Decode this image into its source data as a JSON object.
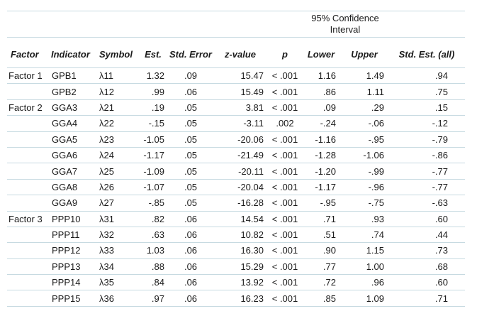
{
  "colors": {
    "rule": "#c7dae1",
    "text": "#1b1b1b"
  },
  "table": {
    "confidence_header": "95% Confidence Interval",
    "columns": [
      "Factor",
      "Indicator",
      "Symbol",
      "Est.",
      "Std. Error",
      "z-value",
      "p",
      "Lower",
      "Upper",
      "Std. Est. (all)"
    ],
    "rows": [
      {
        "factor": "Factor 1",
        "indicator": "GPB1",
        "symbol": "λ11",
        "est": "1.32",
        "std_error": ".09",
        "z_value": "15.47",
        "p": "< .001",
        "lower": "1.16",
        "upper": "1.49",
        "std_est_all": ".94"
      },
      {
        "factor": "",
        "indicator": "GPB2",
        "symbol": "λ12",
        "est": ".99",
        "std_error": ".06",
        "z_value": "15.49",
        "p": "< .001",
        "lower": ".86",
        "upper": "1.11",
        "std_est_all": ".75"
      },
      {
        "factor": "Factor 2",
        "indicator": "GGA3",
        "symbol": "λ21",
        "est": ".19",
        "std_error": ".05",
        "z_value": "3.81",
        "p": "< .001",
        "lower": ".09",
        "upper": ".29",
        "std_est_all": ".15"
      },
      {
        "factor": "",
        "indicator": "GGA4",
        "symbol": "λ22",
        "est": "-.15",
        "std_error": ".05",
        "z_value": "-3.11",
        "p": ".002",
        "lower": "-.24",
        "upper": "-.06",
        "std_est_all": "-.12"
      },
      {
        "factor": "",
        "indicator": "GGA5",
        "symbol": "λ23",
        "est": "-1.05",
        "std_error": ".05",
        "z_value": "-20.06",
        "p": "< .001",
        "lower": "-1.16",
        "upper": "-.95",
        "std_est_all": "-.79"
      },
      {
        "factor": "",
        "indicator": "GGA6",
        "symbol": "λ24",
        "est": "-1.17",
        "std_error": ".05",
        "z_value": "-21.49",
        "p": "< .001",
        "lower": "-1.28",
        "upper": "-1.06",
        "std_est_all": "-.86"
      },
      {
        "factor": "",
        "indicator": "GGA7",
        "symbol": "λ25",
        "est": "-1.09",
        "std_error": ".05",
        "z_value": "-20.11",
        "p": "< .001",
        "lower": "-1.20",
        "upper": "-.99",
        "std_est_all": "-.77"
      },
      {
        "factor": "",
        "indicator": "GGA8",
        "symbol": "λ26",
        "est": "-1.07",
        "std_error": ".05",
        "z_value": "-20.04",
        "p": "< .001",
        "lower": "-1.17",
        "upper": "-.96",
        "std_est_all": "-.77"
      },
      {
        "factor": "",
        "indicator": "GGA9",
        "symbol": "λ27",
        "est": "-.85",
        "std_error": ".05",
        "z_value": "-16.28",
        "p": "< .001",
        "lower": "-.95",
        "upper": "-.75",
        "std_est_all": "-.63"
      },
      {
        "factor": "Factor 3",
        "indicator": "PPP10",
        "symbol": "λ31",
        "est": ".82",
        "std_error": ".06",
        "z_value": "14.54",
        "p": "< .001",
        "lower": ".71",
        "upper": ".93",
        "std_est_all": ".60"
      },
      {
        "factor": "",
        "indicator": "PPP11",
        "symbol": "λ32",
        "est": ".63",
        "std_error": ".06",
        "z_value": "10.82",
        "p": "< .001",
        "lower": ".51",
        "upper": ".74",
        "std_est_all": ".44"
      },
      {
        "factor": "",
        "indicator": "PPP12",
        "symbol": "λ33",
        "est": "1.03",
        "std_error": ".06",
        "z_value": "16.30",
        "p": "< .001",
        "lower": ".90",
        "upper": "1.15",
        "std_est_all": ".73"
      },
      {
        "factor": "",
        "indicator": "PPP13",
        "symbol": "λ34",
        "est": ".88",
        "std_error": ".06",
        "z_value": "15.29",
        "p": "< .001",
        "lower": ".77",
        "upper": "1.00",
        "std_est_all": ".68"
      },
      {
        "factor": "",
        "indicator": "PPP14",
        "symbol": "λ35",
        "est": ".84",
        "std_error": ".06",
        "z_value": "13.92",
        "p": "< .001",
        "lower": ".72",
        "upper": ".96",
        "std_est_all": ".60"
      },
      {
        "factor": "",
        "indicator": "PPP15",
        "symbol": "λ36",
        "est": ".97",
        "std_error": ".06",
        "z_value": "16.23",
        "p": "< .001",
        "lower": ".85",
        "upper": "1.09",
        "std_est_all": ".71"
      }
    ]
  }
}
